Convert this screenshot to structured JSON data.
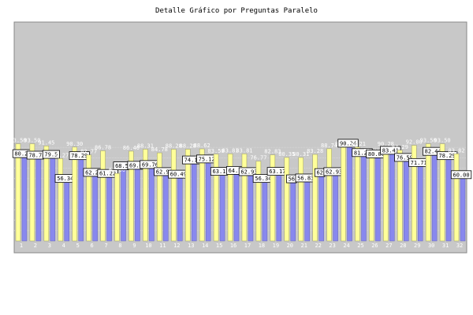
{
  "chart_data": {
    "type": "bar",
    "title": "Detalle Gráfico por Preguntas Paralelo",
    "xlabel": "",
    "ylabel": "",
    "ylim": [
      0,
      100
    ],
    "yticks": [
      10,
      20,
      30,
      40,
      50,
      60,
      70,
      80,
      90
    ],
    "grid": true,
    "legend": "none",
    "categories": [
      "1",
      "2",
      "3",
      "4",
      "5",
      "6",
      "7",
      "8",
      "9",
      "10",
      "11",
      "12",
      "13",
      "14",
      "15",
      "16",
      "17",
      "18",
      "19",
      "20",
      "21",
      "22",
      "23",
      "24",
      "25",
      "26",
      "27",
      "28",
      "29",
      "30",
      "31",
      "32"
    ],
    "series": [
      {
        "color": "#ffff99",
        "values": [
          93.5,
          93.5,
          91.45,
          79.27,
          90.3,
          82.77,
          86.78,
          65.0,
          86.4,
          88.31,
          84.78,
          88.28,
          88.28,
          88.62,
          83.5,
          83.81,
          83.81,
          76.77,
          82.83,
          80.35,
          80.31,
          83.28,
          88.74,
          90.24,
          90.21,
          83.41,
          90.28,
          87.29,
          92.0,
          93.5,
          93.5,
          83.82
        ]
      },
      {
        "color": "#8888ee",
        "values": [
          80.24,
          78.78,
          79.5,
          56.34,
          78.29,
          62.2,
          61.22,
          68.5,
          69.0,
          69.76,
          62.93,
          60.49,
          74.15,
          75.12,
          63.17,
          64.1,
          62.93,
          56.34,
          63.17,
          56.0,
          56.83,
          62.0,
          62.93,
          90.24,
          81.22,
          80.0,
          83.41,
          76.59,
          71.71,
          82.44,
          78.29,
          60.0
        ]
      }
    ],
    "data_labels": {
      "yellow": [
        "93.50",
        "93.50",
        "91.45",
        "79.27",
        "90.30",
        "82.77",
        "86.78",
        "65.00",
        "86.40",
        "88.31",
        "84.78",
        "88.28",
        "88.28",
        "88.62",
        "83.50",
        "83.81",
        "83.81",
        "76.77",
        "82.83",
        "80.35",
        "80.31",
        "83.28",
        "88.74",
        "90.24",
        "90.21",
        "83.41",
        "90.28",
        "87.29",
        "92.00",
        "93.50",
        "93.50",
        "83.82"
      ],
      "blue": [
        "80.24",
        "78.78",
        "79.5",
        "56.34",
        "78.29",
        "62.20",
        "61.22",
        "68.5",
        "69.0",
        "69.76",
        "62.93",
        "60.49",
        "74.15",
        "75.12",
        "63.17",
        "64.1",
        "62.93",
        "56.34",
        "63.17",
        "56",
        "56.83",
        "62",
        "62.93",
        "90.24",
        "81.22",
        "80.00",
        "83.41",
        "76.59",
        "71.71",
        "82.44",
        "78.29",
        "60.00"
      ]
    }
  }
}
